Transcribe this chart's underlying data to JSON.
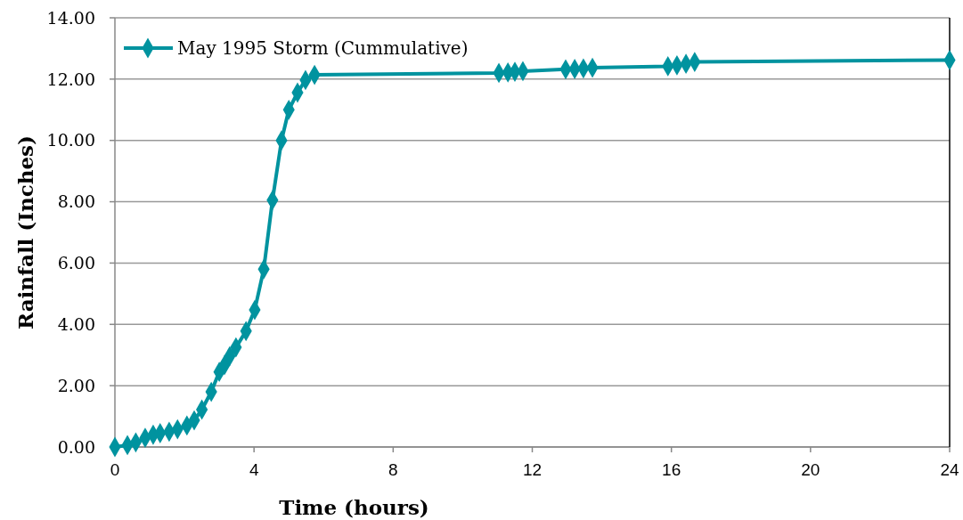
{
  "chart_data": {
    "type": "line",
    "xlabel": "Time (hours)",
    "ylabel": "Rainfall (Inches)",
    "xlim": [
      0,
      24
    ],
    "xticks": [
      0,
      4,
      8,
      12,
      16,
      20,
      24
    ],
    "ylim": [
      0,
      14
    ],
    "yticks": [
      {
        "value": 0,
        "label": "0.00"
      },
      {
        "value": 2,
        "label": "2.00"
      },
      {
        "value": 4,
        "label": "4.00"
      },
      {
        "value": 6,
        "label": "6.00"
      },
      {
        "value": 8,
        "label": "8.00"
      },
      {
        "value": 10,
        "label": "10.00"
      },
      {
        "value": 12,
        "label": "12.00"
      },
      {
        "value": 14,
        "label": "14.00"
      }
    ],
    "grid": "y",
    "legend": "top left",
    "marker": "diamond",
    "series": [
      {
        "name": "May 1995 Storm (Cummulative)",
        "color": "#00939f",
        "x": [
          0,
          0.36,
          0.6,
          0.87,
          1.1,
          1.3,
          1.56,
          1.8,
          2.07,
          2.28,
          2.5,
          2.77,
          3.0,
          3.15,
          3.3,
          3.48,
          3.77,
          4.02,
          4.28,
          4.53,
          4.79,
          5.0,
          5.25,
          5.48,
          5.74,
          11.04,
          11.3,
          11.5,
          11.73,
          12.96,
          13.22,
          13.47,
          13.73,
          15.9,
          16.16,
          16.42,
          16.67,
          24
        ],
        "values": [
          0,
          0.06,
          0.15,
          0.3,
          0.4,
          0.45,
          0.5,
          0.58,
          0.7,
          0.87,
          1.22,
          1.8,
          2.45,
          2.67,
          2.96,
          3.25,
          3.78,
          4.47,
          5.8,
          8.05,
          10.0,
          11.0,
          11.56,
          11.97,
          12.14,
          12.2,
          12.22,
          12.24,
          12.26,
          12.32,
          12.33,
          12.35,
          12.37,
          12.42,
          12.45,
          12.5,
          12.56,
          12.62
        ]
      }
    ]
  }
}
